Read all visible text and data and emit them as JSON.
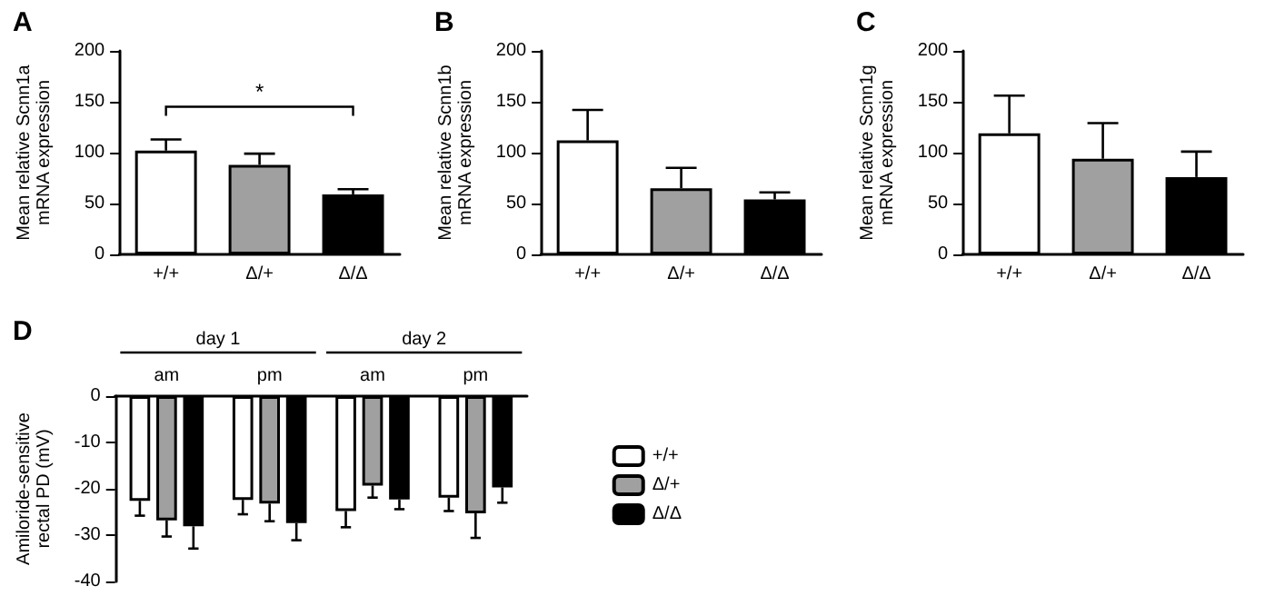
{
  "chart_data": [
    {
      "type": "bar",
      "title": "A",
      "ylabel": "Mean relative Scnn1a mRNA expression",
      "categories": [
        "+/+",
        "Δ/+",
        "Δ/Δ"
      ],
      "values": [
        102,
        88,
        59
      ],
      "colors": [
        "#ffffff",
        "#a0a0a0",
        "#000000"
      ],
      "errors": [
        [
          102,
          113
        ],
        [
          88,
          99
        ],
        [
          59,
          64
        ]
      ],
      "ylim": [
        0,
        200
      ],
      "yticks": [
        0,
        50,
        100,
        150,
        200
      ],
      "annotations": [
        "*"
      ]
    },
    {
      "type": "bar",
      "title": "B",
      "ylabel": "Mean relative Scnn1b mRNA expression",
      "categories": [
        "+/+",
        "Δ/+",
        "Δ/Δ"
      ],
      "values": [
        112,
        65,
        54
      ],
      "colors": [
        "#ffffff",
        "#a0a0a0",
        "#000000"
      ],
      "errors": [
        [
          112,
          142
        ],
        [
          65,
          85
        ],
        [
          54,
          61
        ]
      ],
      "ylim": [
        0,
        200
      ],
      "yticks": [
        0,
        50,
        100,
        150,
        200
      ]
    },
    {
      "type": "bar",
      "title": "C",
      "ylabel": "Mean relative Scnn1g mRNA expression",
      "categories": [
        "+/+",
        "Δ/+",
        "Δ/Δ"
      ],
      "values": [
        119,
        94,
        76
      ],
      "colors": [
        "#ffffff",
        "#a0a0a0",
        "#000000"
      ],
      "errors": [
        [
          119,
          156
        ],
        [
          94,
          129
        ],
        [
          76,
          101
        ]
      ],
      "ylim": [
        0,
        200
      ],
      "yticks": [
        0,
        50,
        100,
        150,
        200
      ]
    },
    {
      "type": "bar",
      "title": "D",
      "ylabel": "Amiloride-sensitive rectal PD (mV)",
      "categories": [
        "am",
        "pm",
        "am",
        "pm"
      ],
      "legend": "right",
      "ylim": [
        -40,
        0
      ],
      "yticks": [
        0,
        -10,
        -20,
        -30,
        -40
      ],
      "annotations": [
        "day 1",
        "day 2"
      ],
      "series": [
        {
          "name": "+/+",
          "color": "#ffffff",
          "values": [
            -22.6,
            -22.4,
            -24.8,
            -21.9
          ],
          "errors": [
            [
              -25.8,
              -22.6
            ],
            [
              -25.5,
              -22.4
            ],
            [
              -28.3,
              -24.8
            ],
            [
              -24.8,
              -21.9
            ]
          ]
        },
        {
          "name": "Δ/+",
          "color": "#a0a0a0",
          "values": [
            -26.8,
            -23.2,
            -19.3,
            -25.3
          ],
          "errors": [
            [
              -30.3,
              -26.8
            ],
            [
              -27.0,
              -23.2
            ],
            [
              -21.9,
              -19.3
            ],
            [
              -30.6,
              -25.3
            ]
          ]
        },
        {
          "name": "Δ/Δ",
          "color": "#000000",
          "values": [
            -28.1,
            -27.4,
            -22.3,
            -19.7
          ],
          "errors": [
            [
              -32.9,
              -28.1
            ],
            [
              -31.1,
              -27.4
            ],
            [
              -24.4,
              -22.3
            ],
            [
              -23.0,
              -19.7
            ]
          ]
        }
      ]
    }
  ]
}
